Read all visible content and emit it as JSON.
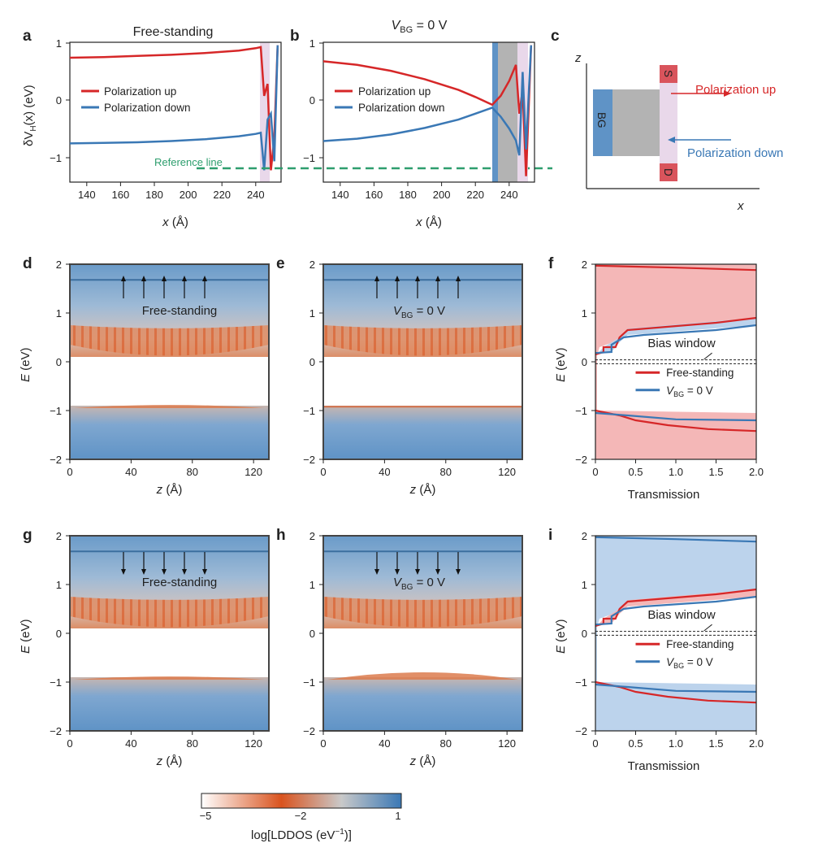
{
  "panel_labels": {
    "a": "a",
    "b": "b",
    "c": "c",
    "d": "d",
    "e": "e",
    "f": "f",
    "g": "g",
    "h": "h",
    "i": "i"
  },
  "panel_a": {
    "title": "Free-standing"
  },
  "panel_b": {
    "title_v": "V",
    "title_sub": "BG",
    "title_rest": " = 0 V"
  },
  "potential_axes": {
    "ylabel_delta": "δV",
    "ylabel_sub": "H",
    "ylabel_rest": "(x) (eV)",
    "xlabel_var": "x",
    "xlabel_rest": " (Å)",
    "xticks": [
      "140",
      "160",
      "180",
      "200",
      "220",
      "240"
    ],
    "yticks": [
      "1",
      "0",
      "−1"
    ]
  },
  "legend_pol": {
    "up": "Polarization up",
    "down": "Polarization down"
  },
  "reference_line": "Reference line",
  "panel_c": {
    "z": "z",
    "x": "x",
    "bg": "BG",
    "s": "S",
    "d": "D",
    "pol_up": "Polarization up",
    "pol_down": "Polarization down"
  },
  "ldos_axes": {
    "ylabel_var": "E",
    "ylabel_rest": " (eV)",
    "xlabel_var": "z",
    "xlabel_rest": " (Å)",
    "yticks": [
      "2",
      "1",
      "0",
      "−1",
      "−2"
    ],
    "xticks": [
      "0",
      "40",
      "80",
      "120"
    ]
  },
  "ldos_labels": {
    "free": "Free-standing",
    "v": "V",
    "sub": "BG",
    "rest": " = 0 V"
  },
  "trans_axes": {
    "xlabel": "Transmission",
    "xticks": [
      "0",
      "0.5",
      "1.0",
      "1.5",
      "2.0"
    ],
    "bias_window": "Bias window",
    "legend_free": "Free-standing",
    "legend_v": "V",
    "legend_sub": "BG",
    "legend_rest": " = 0 V"
  },
  "colorbar": {
    "ticks": [
      "−5",
      "−2",
      "1"
    ],
    "label_pre": "log[LDDOS (eV",
    "label_sup": "−1",
    "label_post": ")]"
  },
  "colors": {
    "red": "#d62728",
    "blue": "#3a78b5",
    "green": "#2e9e6e",
    "pink": "#e9d8ea",
    "gray": "#b3b3b3",
    "orange": "#d9531e",
    "bluefill": "#bcd3ec",
    "redfill": "#f4b7b7"
  },
  "chart_data": [
    {
      "type": "line",
      "panel": "a",
      "series": [
        {
          "name": "Polarization up",
          "x": [
            130,
            150,
            170,
            190,
            210,
            230,
            240,
            243,
            245,
            247,
            249,
            251,
            253
          ],
          "y": [
            0.74,
            0.75,
            0.77,
            0.79,
            0.82,
            0.86,
            0.9,
            0.92,
            0.1,
            0.3,
            -1.15,
            -0.6,
            0.95
          ]
        },
        {
          "name": "Polarization down",
          "x": [
            130,
            150,
            170,
            190,
            210,
            230,
            240,
            243,
            245,
            247,
            249,
            251,
            253
          ],
          "y": [
            -0.7,
            -0.69,
            -0.68,
            -0.66,
            -0.63,
            -0.58,
            -0.54,
            -0.52,
            -1.15,
            -0.3,
            -0.2,
            -1.0,
            0.95
          ]
        }
      ],
      "xlim": [
        130,
        255
      ],
      "ylim": [
        -1.4,
        1
      ]
    },
    {
      "type": "line",
      "panel": "b",
      "series": [
        {
          "name": "Polarization up",
          "x": [
            130,
            150,
            170,
            190,
            210,
            220,
            230,
            235,
            240,
            244,
            246,
            248,
            250,
            253
          ],
          "y": [
            0.68,
            0.62,
            0.52,
            0.38,
            0.2,
            0.08,
            -0.05,
            0.1,
            0.35,
            0.62,
            -0.2,
            0.2,
            -1.25,
            0.95
          ]
        },
        {
          "name": "Polarization down",
          "x": [
            130,
            150,
            170,
            190,
            210,
            220,
            230,
            235,
            240,
            244,
            246,
            248,
            250,
            253
          ],
          "y": [
            -0.66,
            -0.62,
            -0.55,
            -0.44,
            -0.3,
            -0.2,
            -0.1,
            -0.25,
            -0.45,
            -0.65,
            -0.9,
            0.5,
            -0.8,
            0.95
          ]
        }
      ],
      "xlim": [
        130,
        255
      ],
      "ylim": [
        -1.4,
        1
      ]
    },
    {
      "type": "area",
      "panel": "f",
      "series": [
        {
          "name": "Free-standing"
        },
        {
          "name": "V_BG = 0 V"
        }
      ],
      "xlim": [
        0,
        2
      ],
      "ylim": [
        -2,
        2
      ]
    },
    {
      "type": "area",
      "panel": "i",
      "series": [
        {
          "name": "Free-standing"
        },
        {
          "name": "V_BG = 0 V"
        }
      ],
      "xlim": [
        0,
        2
      ],
      "ylim": [
        -2,
        2
      ]
    }
  ]
}
